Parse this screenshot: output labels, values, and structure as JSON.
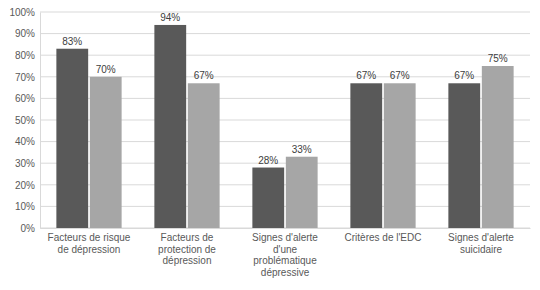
{
  "chart_data": {
    "type": "bar",
    "categories": [
      "Facteurs de risque de dépression",
      "Facteurs de protection de dépression",
      "Signes d'alerte d'une problématique dépressive",
      "Critères de l'EDC",
      "Signes d'alerte suicidaire"
    ],
    "series": [
      {
        "color": "#595959",
        "values": [
          83,
          94,
          28,
          67,
          67
        ],
        "value_labels": [
          "83%",
          "94%",
          "28%",
          "67%",
          "67%"
        ]
      },
      {
        "color": "#a6a6a6",
        "values": [
          70,
          67,
          33,
          67,
          75
        ],
        "value_labels": [
          "70%",
          "67%",
          "33%",
          "67%",
          "75%"
        ]
      }
    ],
    "ylim": [
      0,
      100
    ],
    "yticks": [
      {
        "value": 0,
        "label": "0%"
      },
      {
        "value": 10,
        "label": "10%"
      },
      {
        "value": 20,
        "label": "20%"
      },
      {
        "value": 30,
        "label": "30%"
      },
      {
        "value": 40,
        "label": "40%"
      },
      {
        "value": 50,
        "label": "50%"
      },
      {
        "value": 60,
        "label": "60%"
      },
      {
        "value": 70,
        "label": "70%"
      },
      {
        "value": 80,
        "label": "80%"
      },
      {
        "value": 90,
        "label": "90%"
      },
      {
        "value": 100,
        "label": "100%"
      }
    ],
    "grid": true,
    "data_labels": true
  }
}
